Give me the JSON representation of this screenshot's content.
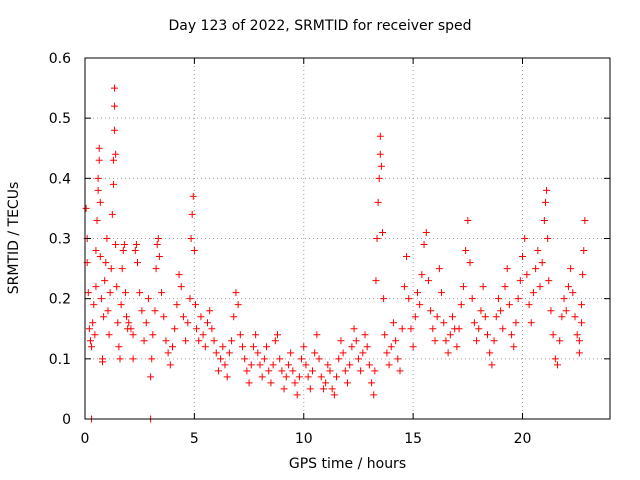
{
  "chart_data": {
    "type": "scatter",
    "title": "Day 123 of 2022, SRMTID for receiver sped",
    "xlabel": "GPS time / hours",
    "ylabel": "SRMTID / TECUs",
    "xlim": [
      0,
      24
    ],
    "ylim": [
      0,
      0.6
    ],
    "xticks": [
      0,
      5,
      10,
      15,
      20
    ],
    "yticks": [
      0,
      0.1,
      0.2,
      0.3,
      0.4,
      0.5,
      0.6
    ],
    "xtick_labels": [
      "0",
      "5",
      "10",
      "15",
      "20"
    ],
    "ytick_labels": [
      "0",
      "0.1",
      "0.2",
      "0.3",
      "0.4",
      "0.5",
      "0.6"
    ],
    "grid": true,
    "marker": "+",
    "color": "#ff0000",
    "series": [
      {
        "name": "SRMTID",
        "points": [
          [
            0.05,
            0.35
          ],
          [
            0.1,
            0.3
          ],
          [
            0.1,
            0.26
          ],
          [
            0.15,
            0.21
          ],
          [
            0.2,
            0.15
          ],
          [
            0.25,
            0.13
          ],
          [
            0.3,
            0.12
          ],
          [
            0.35,
            0.16
          ],
          [
            0.4,
            0.19
          ],
          [
            0.45,
            0.14
          ],
          [
            0.5,
            0.22
          ],
          [
            0.5,
            0.28
          ],
          [
            0.55,
            0.33
          ],
          [
            0.6,
            0.4
          ],
          [
            0.6,
            0.38
          ],
          [
            0.65,
            0.43
          ],
          [
            0.65,
            0.45
          ],
          [
            0.7,
            0.36
          ],
          [
            0.7,
            0.27
          ],
          [
            0.75,
            0.2
          ],
          [
            0.8,
            0.1
          ],
          [
            0.8,
            0.095
          ],
          [
            0.85,
            0.17
          ],
          [
            0.9,
            0.23
          ],
          [
            0.95,
            0.26
          ],
          [
            1.0,
            0.3
          ],
          [
            1.05,
            0.18
          ],
          [
            1.1,
            0.14
          ],
          [
            1.15,
            0.21
          ],
          [
            1.2,
            0.25
          ],
          [
            1.25,
            0.34
          ],
          [
            1.3,
            0.39
          ],
          [
            1.3,
            0.43
          ],
          [
            1.35,
            0.48
          ],
          [
            1.35,
            0.52
          ],
          [
            1.35,
            0.55
          ],
          [
            1.4,
            0.44
          ],
          [
            1.4,
            0.29
          ],
          [
            1.45,
            0.22
          ],
          [
            1.5,
            0.16
          ],
          [
            1.55,
            0.12
          ],
          [
            1.6,
            0.1
          ],
          [
            1.65,
            0.19
          ],
          [
            1.7,
            0.25
          ],
          [
            1.75,
            0.28
          ],
          [
            1.8,
            0.29
          ],
          [
            1.85,
            0.21
          ],
          [
            1.9,
            0.17
          ],
          [
            1.95,
            0.15
          ],
          [
            2.0,
            0.16
          ],
          [
            2.1,
            0.15
          ],
          [
            2.2,
            0.14
          ],
          [
            2.3,
            0.28
          ],
          [
            2.35,
            0.29
          ],
          [
            2.4,
            0.26
          ],
          [
            2.5,
            0.21
          ],
          [
            2.6,
            0.18
          ],
          [
            2.7,
            0.13
          ],
          [
            2.8,
            0.16
          ],
          [
            2.9,
            0.2
          ],
          [
            3.0,
            0.0
          ],
          [
            3.0,
            0.07
          ],
          [
            3.05,
            0.1
          ],
          [
            3.1,
            0.14
          ],
          [
            3.2,
            0.18
          ],
          [
            3.25,
            0.25
          ],
          [
            3.3,
            0.29
          ],
          [
            3.35,
            0.3
          ],
          [
            3.4,
            0.27
          ],
          [
            3.5,
            0.21
          ],
          [
            3.6,
            0.17
          ],
          [
            3.7,
            0.13
          ],
          [
            3.8,
            0.11
          ],
          [
            3.9,
            0.09
          ],
          [
            4.0,
            0.12
          ],
          [
            4.1,
            0.15
          ],
          [
            4.2,
            0.19
          ],
          [
            4.3,
            0.24
          ],
          [
            4.4,
            0.22
          ],
          [
            4.5,
            0.17
          ],
          [
            4.6,
            0.13
          ],
          [
            4.7,
            0.16
          ],
          [
            4.8,
            0.2
          ],
          [
            4.85,
            0.3
          ],
          [
            4.9,
            0.34
          ],
          [
            4.95,
            0.37
          ],
          [
            5.0,
            0.28
          ],
          [
            5.05,
            0.19
          ],
          [
            5.1,
            0.15
          ],
          [
            5.2,
            0.13
          ],
          [
            5.3,
            0.17
          ],
          [
            5.4,
            0.14
          ],
          [
            5.5,
            0.12
          ],
          [
            5.6,
            0.16
          ],
          [
            5.7,
            0.18
          ],
          [
            5.8,
            0.15
          ],
          [
            5.9,
            0.13
          ],
          [
            6.0,
            0.11
          ],
          [
            6.1,
            0.08
          ],
          [
            6.2,
            0.1
          ],
          [
            6.3,
            0.12
          ],
          [
            6.4,
            0.09
          ],
          [
            6.5,
            0.07
          ],
          [
            6.6,
            0.11
          ],
          [
            6.7,
            0.13
          ],
          [
            6.8,
            0.17
          ],
          [
            6.9,
            0.21
          ],
          [
            7.0,
            0.19
          ],
          [
            7.1,
            0.14
          ],
          [
            7.2,
            0.12
          ],
          [
            7.3,
            0.1
          ],
          [
            7.4,
            0.08
          ],
          [
            7.5,
            0.06
          ],
          [
            7.6,
            0.09
          ],
          [
            7.7,
            0.12
          ],
          [
            7.8,
            0.14
          ],
          [
            7.9,
            0.11
          ],
          [
            8.0,
            0.09
          ],
          [
            8.1,
            0.07
          ],
          [
            8.2,
            0.1
          ],
          [
            8.3,
            0.12
          ],
          [
            8.4,
            0.08
          ],
          [
            8.5,
            0.06
          ],
          [
            8.6,
            0.09
          ],
          [
            8.7,
            0.13
          ],
          [
            8.8,
            0.14
          ],
          [
            8.9,
            0.1
          ],
          [
            9.0,
            0.08
          ],
          [
            9.1,
            0.05
          ],
          [
            9.2,
            0.07
          ],
          [
            9.3,
            0.09
          ],
          [
            9.4,
            0.11
          ],
          [
            9.5,
            0.08
          ],
          [
            9.6,
            0.06
          ],
          [
            9.7,
            0.04
          ],
          [
            9.8,
            0.07
          ],
          [
            9.9,
            0.1
          ],
          [
            10.0,
            0.12
          ],
          [
            10.1,
            0.09
          ],
          [
            10.2,
            0.07
          ],
          [
            10.3,
            0.05
          ],
          [
            10.4,
            0.08
          ],
          [
            10.5,
            0.11
          ],
          [
            10.6,
            0.14
          ],
          [
            10.7,
            0.1
          ],
          [
            10.8,
            0.07
          ],
          [
            10.9,
            0.05
          ],
          [
            11.0,
            0.06
          ],
          [
            11.1,
            0.09
          ],
          [
            11.2,
            0.08
          ],
          [
            11.3,
            0.05
          ],
          [
            11.4,
            0.04
          ],
          [
            11.5,
            0.07
          ],
          [
            11.6,
            0.1
          ],
          [
            11.7,
            0.13
          ],
          [
            11.8,
            0.11
          ],
          [
            11.9,
            0.08
          ],
          [
            12.0,
            0.06
          ],
          [
            12.1,
            0.09
          ],
          [
            12.2,
            0.12
          ],
          [
            12.3,
            0.15
          ],
          [
            12.4,
            0.13
          ],
          [
            12.5,
            0.1
          ],
          [
            12.6,
            0.08
          ],
          [
            12.7,
            0.11
          ],
          [
            12.8,
            0.14
          ],
          [
            12.9,
            0.12
          ],
          [
            13.0,
            0.09
          ],
          [
            13.1,
            0.06
          ],
          [
            13.2,
            0.04
          ],
          [
            13.25,
            0.08
          ],
          [
            13.3,
            0.23
          ],
          [
            13.35,
            0.3
          ],
          [
            13.4,
            0.36
          ],
          [
            13.45,
            0.4
          ],
          [
            13.5,
            0.44
          ],
          [
            13.5,
            0.47
          ],
          [
            13.55,
            0.42
          ],
          [
            13.6,
            0.31
          ],
          [
            13.65,
            0.2
          ],
          [
            13.7,
            0.14
          ],
          [
            13.8,
            0.11
          ],
          [
            13.9,
            0.09
          ],
          [
            14.0,
            0.12
          ],
          [
            14.1,
            0.16
          ],
          [
            14.2,
            0.13
          ],
          [
            14.3,
            0.1
          ],
          [
            14.4,
            0.08
          ],
          [
            14.5,
            0.15
          ],
          [
            14.6,
            0.22
          ],
          [
            14.7,
            0.27
          ],
          [
            14.8,
            0.2
          ],
          [
            14.9,
            0.15
          ],
          [
            15.0,
            0.12
          ],
          [
            15.1,
            0.17
          ],
          [
            15.2,
            0.21
          ],
          [
            15.3,
            0.19
          ],
          [
            15.4,
            0.24
          ],
          [
            15.5,
            0.29
          ],
          [
            15.6,
            0.31
          ],
          [
            15.7,
            0.23
          ],
          [
            15.8,
            0.18
          ],
          [
            15.9,
            0.15
          ],
          [
            16.0,
            0.13
          ],
          [
            16.1,
            0.17
          ],
          [
            16.2,
            0.25
          ],
          [
            16.3,
            0.21
          ],
          [
            16.4,
            0.16
          ],
          [
            16.5,
            0.13
          ],
          [
            16.6,
            0.11
          ],
          [
            16.7,
            0.14
          ],
          [
            16.8,
            0.17
          ],
          [
            16.9,
            0.15
          ],
          [
            17.0,
            0.12
          ],
          [
            17.1,
            0.15
          ],
          [
            17.2,
            0.19
          ],
          [
            17.3,
            0.22
          ],
          [
            17.4,
            0.28
          ],
          [
            17.5,
            0.33
          ],
          [
            17.6,
            0.26
          ],
          [
            17.7,
            0.2
          ],
          [
            17.8,
            0.16
          ],
          [
            17.9,
            0.13
          ],
          [
            18.0,
            0.15
          ],
          [
            18.1,
            0.18
          ],
          [
            18.2,
            0.22
          ],
          [
            18.3,
            0.17
          ],
          [
            18.4,
            0.14
          ],
          [
            18.5,
            0.11
          ],
          [
            18.6,
            0.09
          ],
          [
            18.7,
            0.13
          ],
          [
            18.8,
            0.17
          ],
          [
            18.9,
            0.2
          ],
          [
            19.0,
            0.18
          ],
          [
            19.1,
            0.15
          ],
          [
            19.2,
            0.22
          ],
          [
            19.3,
            0.25
          ],
          [
            19.4,
            0.19
          ],
          [
            19.5,
            0.14
          ],
          [
            19.6,
            0.12
          ],
          [
            19.7,
            0.16
          ],
          [
            19.8,
            0.2
          ],
          [
            19.9,
            0.23
          ],
          [
            20.0,
            0.27
          ],
          [
            20.1,
            0.3
          ],
          [
            20.2,
            0.24
          ],
          [
            20.3,
            0.19
          ],
          [
            20.4,
            0.16
          ],
          [
            20.5,
            0.21
          ],
          [
            20.6,
            0.25
          ],
          [
            20.7,
            0.28
          ],
          [
            20.8,
            0.22
          ],
          [
            20.9,
            0.26
          ],
          [
            21.0,
            0.33
          ],
          [
            21.05,
            0.36
          ],
          [
            21.1,
            0.38
          ],
          [
            21.15,
            0.3
          ],
          [
            21.2,
            0.23
          ],
          [
            21.3,
            0.18
          ],
          [
            21.4,
            0.14
          ],
          [
            21.5,
            0.1
          ],
          [
            21.6,
            0.09
          ],
          [
            21.7,
            0.13
          ],
          [
            21.8,
            0.17
          ],
          [
            21.9,
            0.2
          ],
          [
            22.0,
            0.18
          ],
          [
            22.1,
            0.22
          ],
          [
            22.2,
            0.25
          ],
          [
            22.3,
            0.21
          ],
          [
            22.4,
            0.17
          ],
          [
            22.5,
            0.14
          ],
          [
            22.6,
            0.11
          ],
          [
            22.7,
            0.16
          ],
          [
            22.75,
            0.24
          ],
          [
            22.8,
            0.28
          ],
          [
            22.85,
            0.33
          ],
          [
            22.7,
            0.19
          ],
          [
            22.6,
            0.13
          ],
          [
            0.3,
            0.0
          ],
          [
            2.2,
            0.1
          ]
        ]
      }
    ]
  }
}
